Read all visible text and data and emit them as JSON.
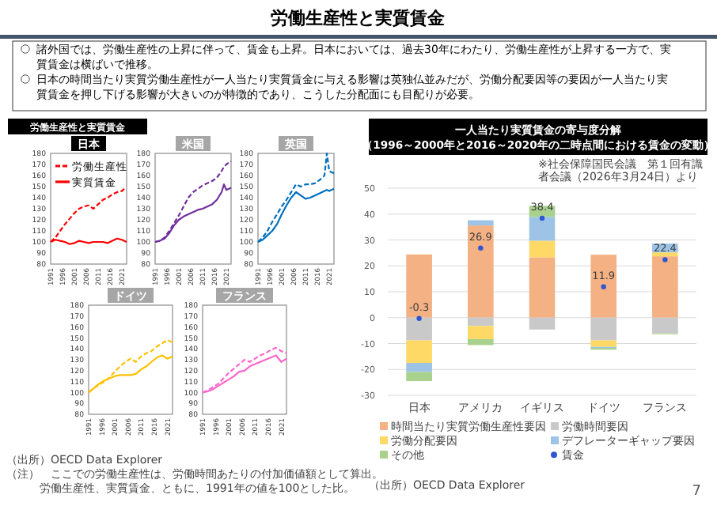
{
  "chart_data": [
    {
      "type": "line",
      "title": "日本",
      "annotations": [
        "労働生産性と実質賃金",
        "諸外国では、労働生産性の上昇に伴って、賃金も上昇。日本においては、過去30年にわたり、労働生産性が上昇する一方で、実質賃金は横ばいで推移。",
        "日本の時間当たり実質労働生産性が一人当たり実質賃金に与える影響は英独仏並みだが、労働分配要因等の要因が一人当たり実質賃金を押し下げる影響が大きいのが特徴的であり、こうした分配面にも目配りが必要。",
        "労働生産性と実質賃金",
        "（出所）OECD Data Explorer",
        "（注）　ここでの労働生産性は、労働時間あたりの付加価値額として算出。",
        "労働生産性、実質賃金、ともに、1991年の値を100とした比。"
      ],
      "x": [
        1991,
        1993,
        1995,
        1997,
        1999,
        2001,
        2003,
        2005,
        2007,
        2009,
        2011,
        2013,
        2015,
        2017,
        2019,
        2021,
        2023
      ],
      "xlim": [
        1991,
        2023
      ],
      "xticks": [
        1991,
        1996,
        2001,
        2006,
        2011,
        2016,
        2021
      ],
      "ylim": [
        80,
        180
      ],
      "yticks": [
        80,
        90,
        100,
        110,
        120,
        130,
        140,
        150,
        160,
        170,
        180
      ],
      "legend": "top",
      "series": [
        {
          "name": "労働生産性",
          "color": "#ff0000",
          "line_style": "dashed",
          "x": [
            1991,
            1993,
            1995,
            1997,
            1999,
            2001,
            2003,
            2005,
            2007,
            2009,
            2011,
            2013,
            2015,
            2017,
            2019,
            2021,
            2022
          ],
          "values": [
            100,
            104,
            110,
            116,
            121,
            126,
            130,
            132,
            133,
            130,
            134,
            138,
            140,
            143,
            145,
            146,
            148
          ]
        },
        {
          "name": "実質賃金",
          "color": "#ff0000",
          "line_style": "solid",
          "values": [
            100,
            102,
            101,
            100,
            98,
            99,
            101,
            100,
            99,
            100,
            100,
            100,
            99,
            101,
            103,
            102,
            100
          ]
        }
      ]
    },
    {
      "type": "line",
      "title": "米国",
      "x": [
        1991,
        1993,
        1995,
        1997,
        1999,
        2001,
        2003,
        2005,
        2007,
        2009,
        2011,
        2013,
        2015,
        2017,
        2019,
        2020,
        2021,
        2023
      ],
      "xlim": [
        1991,
        2023
      ],
      "xticks": [
        1991,
        1996,
        2001,
        2006,
        2011,
        2016,
        2021
      ],
      "ylim": [
        80,
        180
      ],
      "yticks": [
        80,
        90,
        100,
        110,
        120,
        130,
        140,
        150,
        160,
        170,
        180
      ],
      "series": [
        {
          "color": "#7030a0",
          "line_style": "dashed",
          "values": [
            100,
            101,
            104,
            110,
            117,
            124,
            132,
            140,
            145,
            148,
            151,
            153,
            155,
            158,
            164,
            168,
            170,
            173
          ]
        },
        {
          "color": "#7030a0",
          "line_style": "solid",
          "values": [
            100,
            101,
            103,
            108,
            115,
            120,
            123,
            125,
            127,
            129,
            130,
            132,
            134,
            138,
            145,
            152,
            147,
            149
          ]
        }
      ]
    },
    {
      "type": "line",
      "title": "英国",
      "x": [
        1991,
        1993,
        1995,
        1997,
        1999,
        2001,
        2003,
        2005,
        2007,
        2009,
        2011,
        2013,
        2015,
        2017,
        2019,
        2020,
        2021,
        2023
      ],
      "xlim": [
        1991,
        2023
      ],
      "xticks": [
        1991,
        1996,
        2001,
        2006,
        2011,
        2016,
        2021
      ],
      "ylim": [
        80,
        180
      ],
      "yticks": [
        80,
        90,
        100,
        110,
        120,
        130,
        140,
        150,
        160,
        170,
        180
      ],
      "series": [
        {
          "color": "#0070c0",
          "line_style": "dashed",
          "values": [
            100,
            104,
            110,
            118,
            125,
            132,
            138,
            145,
            152,
            150,
            152,
            152,
            153,
            156,
            160,
            180,
            164,
            162
          ]
        },
        {
          "color": "#0070c0",
          "line_style": "solid",
          "values": [
            100,
            102,
            106,
            110,
            116,
            125,
            133,
            140,
            145,
            142,
            139,
            140,
            142,
            144,
            146,
            147,
            146,
            148
          ]
        }
      ]
    },
    {
      "type": "line",
      "title": "ドイツ",
      "x": [
        1991,
        1993,
        1995,
        1997,
        1999,
        2001,
        2003,
        2005,
        2007,
        2009,
        2011,
        2013,
        2015,
        2017,
        2019,
        2021,
        2023
      ],
      "xlim": [
        1991,
        2023
      ],
      "xticks": [
        1991,
        1996,
        2001,
        2006,
        2011,
        2016,
        2021
      ],
      "ylim": [
        80,
        180
      ],
      "yticks": [
        80,
        90,
        100,
        110,
        120,
        130,
        140,
        150,
        160,
        170,
        180
      ],
      "series": [
        {
          "color": "#ffc000",
          "line_style": "dashed",
          "values": [
            100,
            104,
            107,
            110,
            114,
            119,
            124,
            128,
            131,
            128,
            133,
            136,
            138,
            142,
            145,
            148,
            146
          ]
        },
        {
          "color": "#ffc000",
          "line_style": "solid",
          "values": [
            100,
            104,
            108,
            111,
            113,
            115,
            116,
            116,
            116,
            117,
            121,
            124,
            128,
            132,
            134,
            131,
            133
          ]
        }
      ]
    },
    {
      "type": "line",
      "title": "フランス",
      "x": [
        1991,
        1993,
        1995,
        1997,
        1999,
        2001,
        2003,
        2005,
        2007,
        2009,
        2011,
        2013,
        2015,
        2017,
        2019,
        2021,
        2023
      ],
      "xlim": [
        1991,
        2023
      ],
      "xticks": [
        1991,
        1996,
        2001,
        2006,
        2011,
        2016,
        2021
      ],
      "ylim": [
        80,
        180
      ],
      "yticks": [
        80,
        90,
        100,
        110,
        120,
        130,
        140,
        150,
        160,
        170,
        180
      ],
      "series": [
        {
          "color": "#ff66cc",
          "line_style": "dashed",
          "values": [
            100,
            102,
            105,
            108,
            113,
            118,
            122,
            126,
            130,
            128,
            131,
            134,
            136,
            139,
            141,
            138,
            136
          ]
        },
        {
          "color": "#ff66cc",
          "line_style": "solid",
          "values": [
            100,
            101,
            103,
            106,
            109,
            112,
            115,
            119,
            120,
            124,
            126,
            128,
            130,
            132,
            134,
            128,
            131
          ]
        }
      ]
    },
    {
      "type": "bar",
      "stacked": true,
      "title": "一人当たり実質賃金の寄与度分解",
      "subtitle": "（1996～2000年と2016～2020年の二時点間における賃金の変動）",
      "annotations": [
        "※社会保障国民会議　第１回有識者会議（2026年3月24日）より",
        "（出所）OECD Data Explorer",
        "7"
      ],
      "categories": [
        "日本",
        "アメリカ",
        "イギリス",
        "ドイツ",
        "フランス"
      ],
      "ylim": [
        -30,
        50
      ],
      "yticks": [
        -30,
        -20,
        -10,
        0,
        10,
        20,
        30,
        40,
        50
      ],
      "grid": "y",
      "legend": "bottom",
      "series": [
        {
          "name": "時間当たり実質労働生産性要因",
          "color": "#f4b183",
          "values": [
            24.4,
            35.6,
            23.3,
            24.3,
            23.7
          ]
        },
        {
          "name": "労働時間要因",
          "color": "#c9c9c9",
          "values": [
            -8.8,
            -3.2,
            -4.6,
            -8.8,
            -6.0
          ]
        },
        {
          "name": "労働分配要因",
          "color": "#ffd966",
          "values": [
            -8.7,
            -5.1,
            6.4,
            -2.5,
            1.5
          ]
        },
        {
          "name": "デフレーターギャップ要因",
          "color": "#9dc3e6",
          "values": [
            -3.5,
            2.0,
            9.2,
            -0.4,
            3.4
          ]
        },
        {
          "name": "その他",
          "color": "#a9d18e",
          "values": [
            -3.5,
            -2.3,
            4.3,
            -0.7,
            -0.4
          ]
        },
        {
          "name": "賃金",
          "type": "scatter",
          "color": "#2f55d4",
          "marker": "circle",
          "x": [
            "日本",
            "アメリカ",
            "イギリス",
            "ドイツ",
            "フランス"
          ],
          "values": [
            -0.3,
            26.9,
            38.4,
            11.9,
            22.4
          ],
          "value_labels": [
            "-0.3",
            "26.9",
            "38.4",
            "11.9",
            "22.4"
          ]
        }
      ]
    }
  ]
}
